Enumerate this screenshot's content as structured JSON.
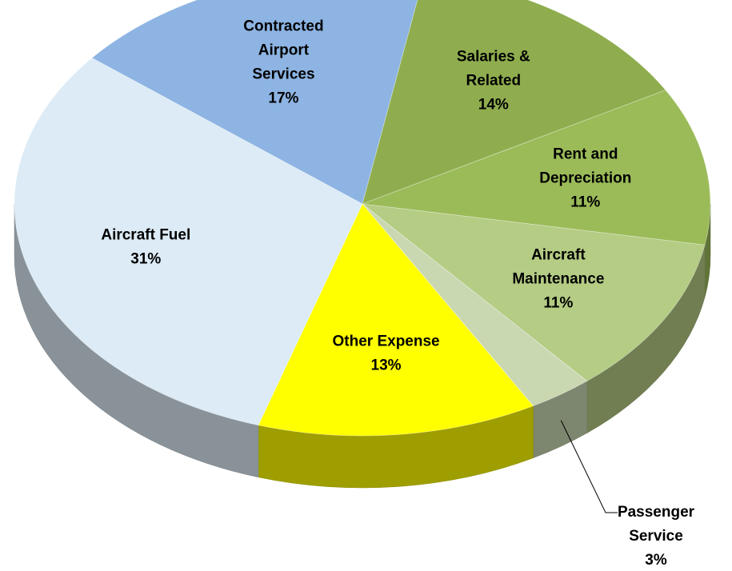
{
  "chart_data": {
    "type": "pie",
    "categories": [
      "Contracted Airport Services",
      "Salaries & Related",
      "Rent and Depreciation",
      "Aircraft Maintenance",
      "Passenger Service",
      "Other Expense",
      "Aircraft Fuel"
    ],
    "values": [
      17,
      14,
      11,
      11,
      3,
      13,
      31
    ],
    "value_labels": [
      "17%",
      "14%",
      "11%",
      "11%",
      "3%",
      "13%",
      "31%"
    ],
    "colors": [
      "#8db4e3",
      "#8fad4e",
      "#9bbb59",
      "#b4cc84",
      "#cad8b2",
      "#ffff00",
      "#dcebf5"
    ]
  }
}
